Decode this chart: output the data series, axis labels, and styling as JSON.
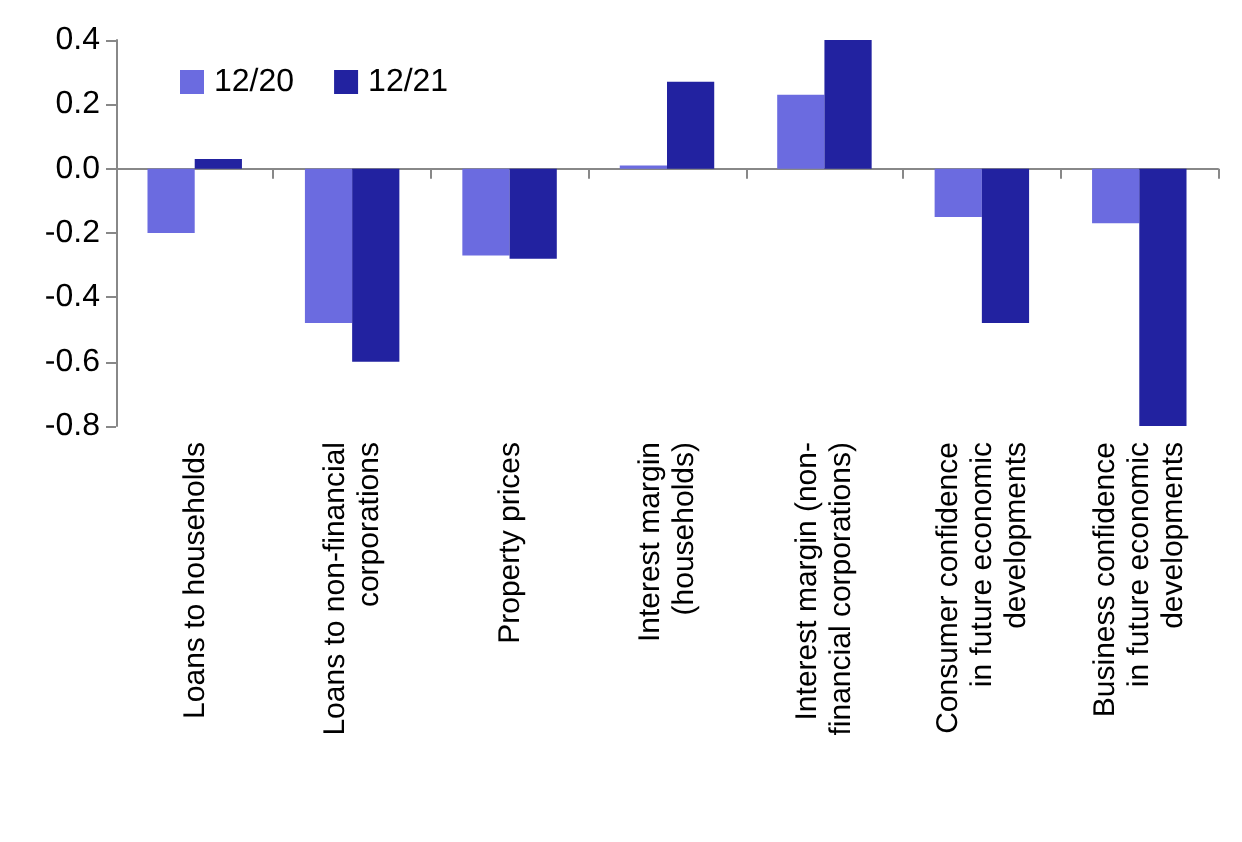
{
  "chart_data": {
    "type": "bar",
    "categories": [
      "Loans to households",
      "Loans to non-financial\ncorporations",
      "Property prices",
      "Interest margin\n(households)",
      "Interest margin (non-\nfinancial corporations)",
      "Consumer confidence\nin future economic\ndevelopments",
      "Business confidence\nin future economic\ndevelopments"
    ],
    "series": [
      {
        "name": "12/20",
        "color": "#6b6be0",
        "values": [
          -0.2,
          -0.48,
          -0.27,
          0.01,
          0.23,
          -0.15,
          -0.17
        ]
      },
      {
        "name": "12/21",
        "color": "#2222a0",
        "values": [
          0.03,
          -0.6,
          -0.28,
          0.27,
          0.4,
          -0.48,
          -0.8
        ]
      }
    ],
    "ylim": [
      -0.8,
      0.4
    ],
    "yticks": [
      -0.8,
      -0.6,
      -0.4,
      -0.2,
      {
        "value": 0,
        "label": "0.0"
      },
      0.2,
      0.4
    ],
    "legend": "top left"
  }
}
